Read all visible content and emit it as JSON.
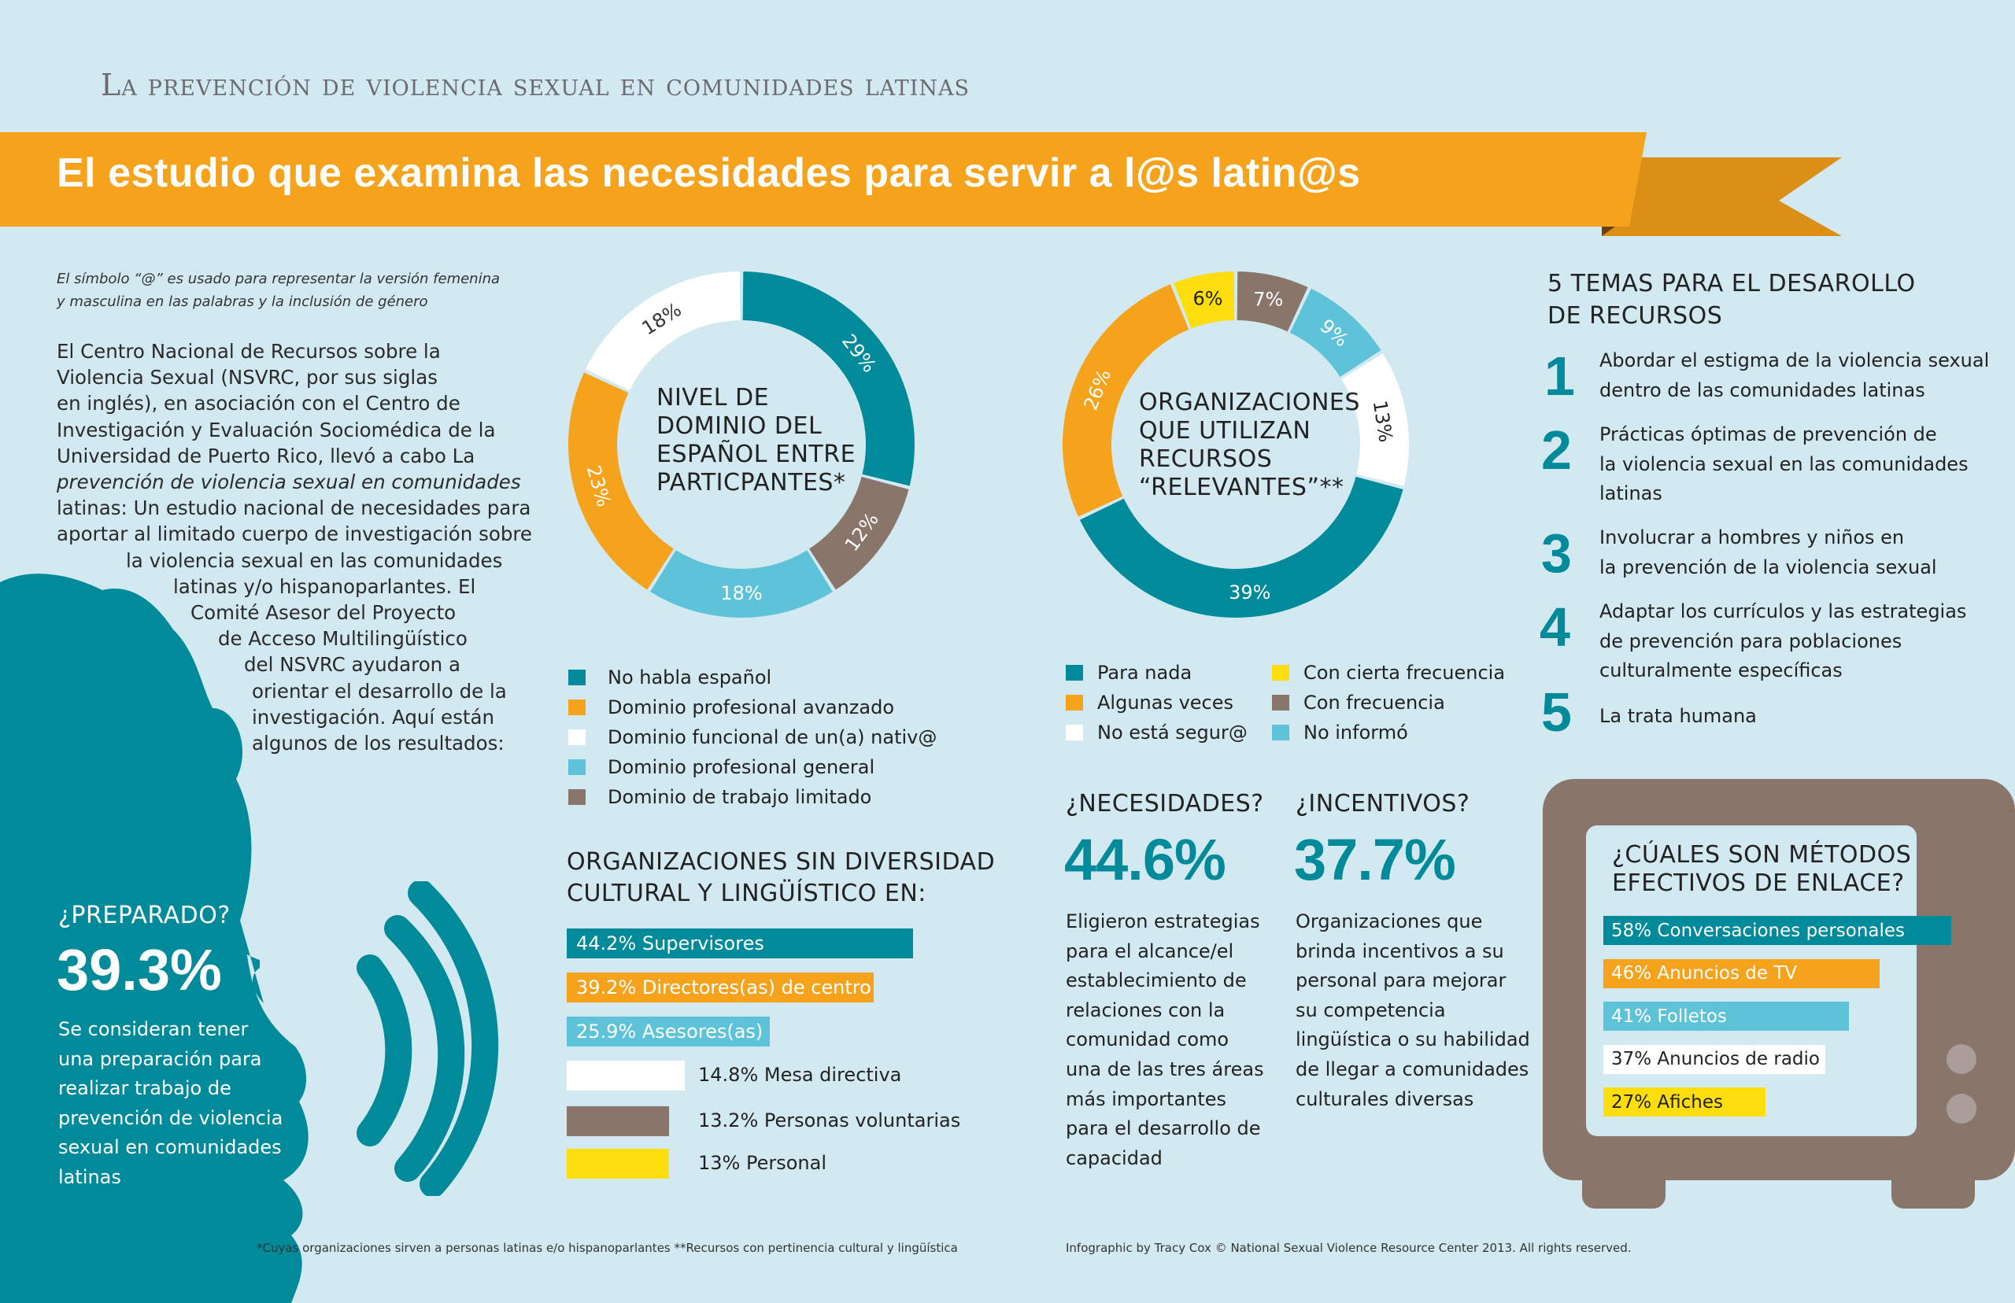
{
  "header": {
    "subtitle": "La prevención de violencia sexual en comunidades latinas",
    "title": "El estudio que examina las necesidades para servir a l@s latin@s"
  },
  "intro": {
    "note_lines": [
      "El símbolo “@” es usado para representar la versión femenina",
      "y masculina en las palabras y la inclusión de género"
    ],
    "paragraph_lines": [
      "El Centro Nacional de Recursos sobre la",
      "Violencia Sexual (NSVRC, por sus siglas",
      "en inglés), en asociación con el Centro de",
      "Investigación y Evaluación Sociomédica de la",
      "Universidad de Puerto Rico, llevó a cabo La",
      "prevención de violencia sexual en comunidades",
      "latinas: Un estudio nacional de necesidades para",
      "aportar al limitado cuerpo de investigación sobre",
      "la violencia sexual en las comunidades",
      "latinas y/o hispanoparlantes. El",
      "Comité Asesor del Proyecto",
      "de Acceso Multilingüístico",
      "del NSVRC ayudaron a",
      "orientar el desarrollo de la",
      "investigación. Aquí están",
      "algunos de los resultados:"
    ]
  },
  "preparado": {
    "heading": "¿PREPARADO?",
    "value": "39.3%",
    "text_lines": [
      "Se consideran tener",
      "una preparación para",
      "realizar trabajo de",
      "prevención de violencia",
      "sexual en comunidades",
      "latinas"
    ]
  },
  "colors": {
    "background": "#d3e9f1",
    "teal": "#008a9a",
    "orange": "#f5a21d",
    "dark_orange": "#db8f17",
    "light_blue": "#5ec2d8",
    "brown": "#8a756b",
    "yellow": "#fedd0f",
    "white": "#ffffff"
  },
  "chart_data": [
    {
      "type": "pie",
      "title": "NIVEL DE DOMINIO DEL ESPAÑOL ENTRE PARTICPANTES*",
      "title_lines": [
        "NIVEL DE",
        "DOMINIO DEL",
        "ESPAÑOL ENTRE",
        "PARTICPANTES*"
      ],
      "donut": true,
      "slices": [
        {
          "label": "No habla español",
          "value": 29,
          "display": "29%",
          "color": "#008a9a"
        },
        {
          "label": "Dominio de trabajo limitado",
          "value": 12,
          "display": "12%",
          "color": "#8a756b"
        },
        {
          "label": "Dominio profesional general",
          "value": 18,
          "display": "18%",
          "color": "#5ec2d8"
        },
        {
          "label": "Dominio profesional avanzado",
          "value": 23,
          "display": "23%",
          "color": "#f5a21d"
        },
        {
          "label": "Dominio funcional de un(a) nativ@",
          "value": 18,
          "display": "18%",
          "color": "#ffffff"
        }
      ],
      "legend": [
        {
          "label": "No habla español",
          "color": "#008a9a"
        },
        {
          "label": "Dominio profesional avanzado",
          "color": "#f5a21d"
        },
        {
          "label": "Dominio funcional de un(a) nativ@",
          "color": "#ffffff"
        },
        {
          "label": "Dominio profesional general",
          "color": "#5ec2d8"
        },
        {
          "label": "Dominio de trabajo limitado",
          "color": "#8a756b"
        }
      ]
    },
    {
      "type": "pie",
      "title": "ORGANIZACIONES QUE UTILIZAN RECURSOS “RELEVANTES”**",
      "title_lines": [
        "ORGANIZACIONES",
        "QUE UTILIZAN",
        "RECURSOS",
        "“RELEVANTES”**"
      ],
      "donut": true,
      "slices": [
        {
          "label": "Con frecuencia",
          "value": 7,
          "display": "7%",
          "color": "#8a756b"
        },
        {
          "label": "No informó",
          "value": 9,
          "display": "9%",
          "color": "#5ec2d8"
        },
        {
          "label": "No está segur@",
          "value": 13,
          "display": "13%",
          "color": "#ffffff"
        },
        {
          "label": "Para nada",
          "value": 39,
          "display": "39%",
          "color": "#008a9a"
        },
        {
          "label": "Algunas veces",
          "value": 26,
          "display": "26%",
          "color": "#f5a21d"
        },
        {
          "label": "Con cierta frecuencia",
          "value": 6,
          "display": "6%",
          "color": "#fedd0f"
        }
      ],
      "legend": [
        {
          "label": "Para nada",
          "color": "#008a9a"
        },
        {
          "label": "Algunas veces",
          "color": "#f5a21d"
        },
        {
          "label": "No está segur@",
          "color": "#ffffff"
        },
        {
          "label": "Con cierta frecuencia",
          "color": "#fedd0f"
        },
        {
          "label": "Con frecuencia",
          "color": "#8a756b"
        },
        {
          "label": "No informó",
          "color": "#5ec2d8"
        }
      ]
    },
    {
      "type": "bar",
      "orientation": "horizontal",
      "title": "ORGANIZACIONES SIN DIVERSIDAD CULTURAL Y LINGÜÍSTICO EN:",
      "title_lines": [
        "ORGANIZACIONES SIN DIVERSIDAD",
        "CULTURAL Y LINGÜÍSTICO EN:"
      ],
      "xlim": [
        0,
        44.2
      ],
      "bars": [
        {
          "label": "44.2% Supervisores",
          "value": 44.2,
          "color": "#008a9a",
          "label_inside": true
        },
        {
          "label": "39.2% Directores(as) de centro",
          "value": 39.2,
          "color": "#f5a21d",
          "label_inside": true
        },
        {
          "label": "25.9% Asesores(as)",
          "value": 25.9,
          "color": "#5ec2d8",
          "label_inside": true
        },
        {
          "label": "14.8%  Mesa directiva",
          "value": 14.8,
          "color": "#ffffff",
          "label_inside": false
        },
        {
          "label": "13.2% Personas voluntarias",
          "value": 13.2,
          "color": "#8a756b",
          "label_inside": false
        },
        {
          "label": "13% Personal",
          "value": 13,
          "color": "#fedd0f",
          "label_inside": false
        }
      ]
    },
    {
      "type": "bar",
      "orientation": "horizontal",
      "title": "¿CÚALES SON MÉTODOS EFECTIVOS DE ENLACE?",
      "title_lines": [
        "¿CÚALES SON MÉTODOS",
        "EFECTIVOS DE ENLACE?"
      ],
      "xlim": [
        0,
        58
      ],
      "bars": [
        {
          "label": "58%  Conversaciones personales",
          "value": 58,
          "color": "#008a9a",
          "text_color": "#ffffff"
        },
        {
          "label": "46%  Anuncios de TV",
          "value": 46,
          "color": "#f5a21d",
          "text_color": "#ffffff"
        },
        {
          "label": "41%  Folletos",
          "value": 41,
          "color": "#5ec2d8",
          "text_color": "#ffffff"
        },
        {
          "label": "37%  Anuncios de radio",
          "value": 37,
          "color": "#ffffff",
          "text_color": "#222222"
        },
        {
          "label": "27%   Afiches",
          "value": 27,
          "color": "#fedd0f",
          "text_color": "#222222"
        }
      ]
    }
  ],
  "stats": {
    "necesidades": {
      "heading": "¿NECESIDADES?",
      "value": "44.6%",
      "text_lines": [
        "Eligieron estrategias",
        "para el alcance/el",
        "establecimiento de",
        "relaciones con la",
        "comunidad como",
        "una de las tres áreas",
        "más importantes",
        "para el desarrollo de",
        "capacidad"
      ]
    },
    "incentivos": {
      "heading": "¿INCENTIVOS?",
      "value": "37.7%",
      "text_lines": [
        "Organizaciones que",
        "brinda incentivos a su",
        "personal para mejorar",
        "su competencia",
        "lingüística o su habilidad",
        "de llegar a comunidades",
        "culturales diversas"
      ]
    }
  },
  "temas": {
    "title_lines": [
      "5 TEMAS PARA EL DESAROLLO",
      "DE RECURSOS"
    ],
    "items": [
      {
        "num": "1",
        "lines": [
          "Abordar el estigma de la violencia sexual",
          "dentro de las comunidades latinas"
        ]
      },
      {
        "num": "2",
        "lines": [
          "Prácticas óptimas de prevención de",
          "la violencia sexual en las comunidades",
          "latinas"
        ]
      },
      {
        "num": "3",
        "lines": [
          "Involucrar a hombres y niños en",
          "la prevención de la violencia sexual"
        ]
      },
      {
        "num": "4",
        "lines": [
          "Adaptar los currículos y las estrategias",
          "de prevención para poblaciones",
          "culturalmente específicas"
        ]
      },
      {
        "num": "5",
        "lines": [
          "La trata humana"
        ]
      }
    ]
  },
  "footer": {
    "footnote": "*Cuyas organizaciones sirven a personas latinas e/o hispanoparlantes **Recursos con pertinencia cultural y lingüística",
    "credit": "Infographic by Tracy Cox   © National Sexual Violence Resource Center 2013. All rights reserved."
  }
}
